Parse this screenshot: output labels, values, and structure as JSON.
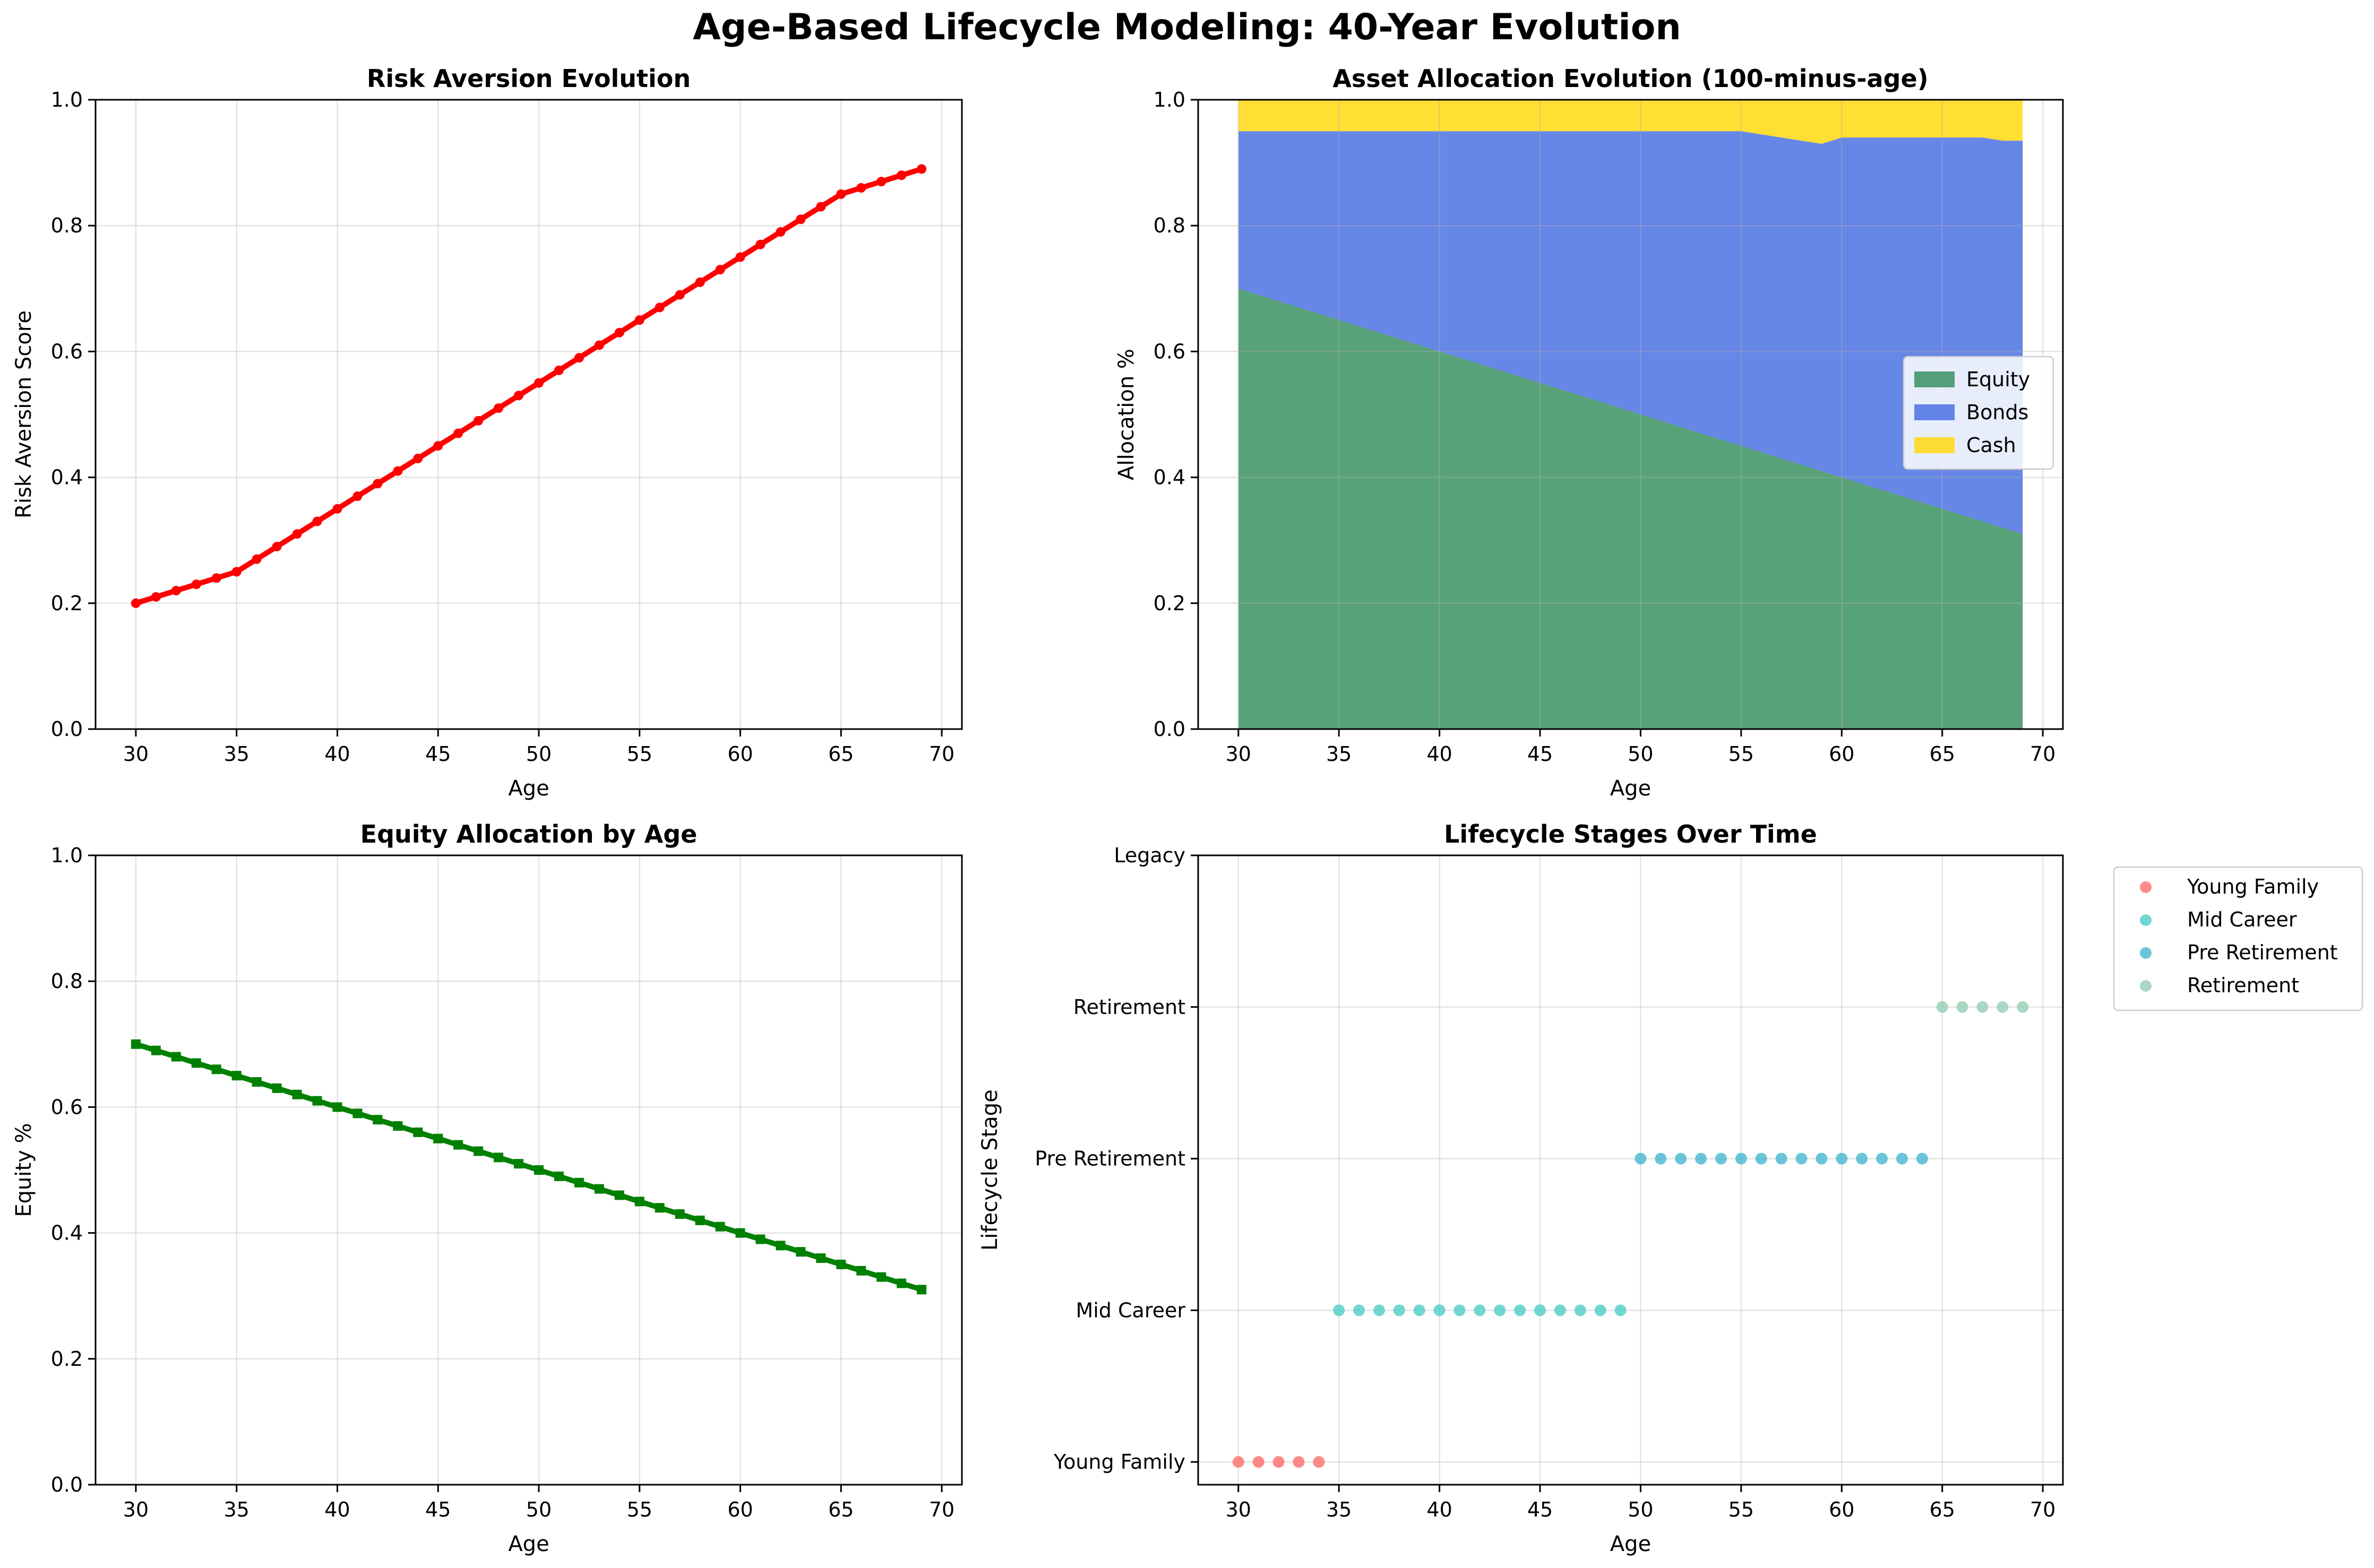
{
  "figure": {
    "title": "Age-Based Lifecycle Modeling: 40-Year Evolution"
  },
  "colors": {
    "risk": "#ff0000",
    "equity_line": "#008000",
    "equity_area": "#2e8b57",
    "bonds_area": "#4169e1",
    "cash_area": "#ffd700",
    "young_family": "#ff6b6b",
    "mid_career": "#4ecdc4",
    "pre_retirement": "#45b7d1",
    "retirement": "#96ceb4"
  },
  "chart_data": [
    {
      "id": "risk",
      "type": "line",
      "title": "Risk Aversion Evolution",
      "xlabel": "Age",
      "ylabel": "Risk Aversion Score",
      "xlim": [
        28,
        71
      ],
      "ylim": [
        0,
        1
      ],
      "xticks": [
        "30",
        "35",
        "40",
        "45",
        "50",
        "55",
        "60",
        "65",
        "70"
      ],
      "yticks": [
        "0.0",
        "0.2",
        "0.4",
        "0.6",
        "0.8",
        "1.0"
      ],
      "grid": true,
      "marker": "circle",
      "series": [
        {
          "x": [
            30,
            31,
            32,
            33,
            34,
            35,
            36,
            37,
            38,
            39,
            40,
            41,
            42,
            43,
            44,
            45,
            46,
            47,
            48,
            49,
            50,
            51,
            52,
            53,
            54,
            55,
            56,
            57,
            58,
            59,
            60,
            61,
            62,
            63,
            64,
            65,
            66,
            67,
            68,
            69
          ],
          "values": [
            0.2,
            0.21,
            0.22,
            0.23,
            0.24,
            0.25,
            0.27,
            0.29,
            0.31,
            0.33,
            0.35,
            0.37,
            0.39,
            0.41,
            0.43,
            0.45,
            0.47,
            0.49,
            0.51,
            0.53,
            0.55,
            0.57,
            0.59,
            0.61,
            0.63,
            0.65,
            0.67,
            0.69,
            0.71,
            0.73,
            0.75,
            0.77,
            0.79,
            0.81,
            0.83,
            0.85,
            0.86,
            0.87,
            0.88,
            0.89
          ]
        }
      ]
    },
    {
      "id": "alloc",
      "type": "area",
      "stacked": true,
      "title": "Asset Allocation Evolution (100-minus-age)",
      "xlabel": "Age",
      "ylabel": "Allocation %",
      "xlim": [
        28,
        71
      ],
      "ylim": [
        0,
        1
      ],
      "xticks": [
        "30",
        "35",
        "40",
        "45",
        "50",
        "55",
        "60",
        "65",
        "70"
      ],
      "yticks": [
        "0.0",
        "0.2",
        "0.4",
        "0.6",
        "0.8",
        "1.0"
      ],
      "grid": true,
      "legend": "center-right",
      "x": [
        30,
        31,
        32,
        33,
        34,
        35,
        36,
        37,
        38,
        39,
        40,
        41,
        42,
        43,
        44,
        45,
        46,
        47,
        48,
        49,
        50,
        51,
        52,
        53,
        54,
        55,
        56,
        57,
        58,
        59,
        60,
        61,
        62,
        63,
        64,
        65,
        66,
        67,
        68,
        69
      ],
      "series": [
        {
          "name": "Equity",
          "values": [
            0.7,
            0.69,
            0.68,
            0.67,
            0.66,
            0.65,
            0.64,
            0.63,
            0.62,
            0.61,
            0.6,
            0.59,
            0.58,
            0.57,
            0.56,
            0.55,
            0.54,
            0.53,
            0.52,
            0.51,
            0.5,
            0.49,
            0.48,
            0.47,
            0.46,
            0.45,
            0.44,
            0.43,
            0.42,
            0.41,
            0.4,
            0.39,
            0.38,
            0.37,
            0.36,
            0.35,
            0.34,
            0.33,
            0.32,
            0.31
          ]
        },
        {
          "name": "Bonds",
          "values": [
            0.25,
            0.26,
            0.27,
            0.28,
            0.29,
            0.3,
            0.31,
            0.32,
            0.33,
            0.34,
            0.35,
            0.36,
            0.37,
            0.38,
            0.39,
            0.4,
            0.41,
            0.42,
            0.43,
            0.44,
            0.45,
            0.46,
            0.47,
            0.48,
            0.49,
            0.5,
            0.505,
            0.51,
            0.515,
            0.52,
            0.54,
            0.55,
            0.56,
            0.57,
            0.58,
            0.59,
            0.6,
            0.61,
            0.615,
            0.625
          ]
        },
        {
          "name": "Cash",
          "values": [
            0.05,
            0.05,
            0.05,
            0.05,
            0.05,
            0.05,
            0.05,
            0.05,
            0.05,
            0.05,
            0.05,
            0.05,
            0.05,
            0.05,
            0.05,
            0.05,
            0.05,
            0.05,
            0.05,
            0.05,
            0.05,
            0.05,
            0.05,
            0.05,
            0.05,
            0.05,
            0.055,
            0.06,
            0.065,
            0.07,
            0.06,
            0.06,
            0.06,
            0.06,
            0.06,
            0.06,
            0.06,
            0.06,
            0.065,
            0.065
          ]
        }
      ]
    },
    {
      "id": "equity",
      "type": "line",
      "title": "Equity Allocation by Age",
      "xlabel": "Age",
      "ylabel": "Equity %",
      "xlim": [
        28,
        71
      ],
      "ylim": [
        0,
        1
      ],
      "xticks": [
        "30",
        "35",
        "40",
        "45",
        "50",
        "55",
        "60",
        "65",
        "70"
      ],
      "yticks": [
        "0.0",
        "0.2",
        "0.4",
        "0.6",
        "0.8",
        "1.0"
      ],
      "grid": true,
      "marker": "square",
      "series": [
        {
          "x": [
            30,
            31,
            32,
            33,
            34,
            35,
            36,
            37,
            38,
            39,
            40,
            41,
            42,
            43,
            44,
            45,
            46,
            47,
            48,
            49,
            50,
            51,
            52,
            53,
            54,
            55,
            56,
            57,
            58,
            59,
            60,
            61,
            62,
            63,
            64,
            65,
            66,
            67,
            68,
            69
          ],
          "values": [
            0.7,
            0.69,
            0.68,
            0.67,
            0.66,
            0.65,
            0.64,
            0.63,
            0.62,
            0.61,
            0.6,
            0.59,
            0.58,
            0.57,
            0.56,
            0.55,
            0.54,
            0.53,
            0.52,
            0.51,
            0.5,
            0.49,
            0.48,
            0.47,
            0.46,
            0.45,
            0.44,
            0.43,
            0.42,
            0.41,
            0.4,
            0.39,
            0.38,
            0.37,
            0.36,
            0.35,
            0.34,
            0.33,
            0.32,
            0.31
          ]
        }
      ]
    },
    {
      "id": "stages",
      "type": "scatter",
      "title": "Lifecycle Stages Over Time",
      "xlabel": "Age",
      "ylabel": "Lifecycle Stage",
      "xlim": [
        28,
        71
      ],
      "ylim": [
        -0.15,
        4
      ],
      "xticks": [
        "30",
        "35",
        "40",
        "45",
        "50",
        "55",
        "60",
        "65",
        "70"
      ],
      "yticks": [
        "Young Family",
        "Mid Career",
        "Pre Retirement",
        "Retirement",
        "Legacy"
      ],
      "grid": true,
      "legend": "outside-right",
      "series": [
        {
          "name": "Young Family",
          "level": 0,
          "x": [
            30,
            31,
            32,
            33,
            34
          ]
        },
        {
          "name": "Mid Career",
          "level": 1,
          "x": [
            35,
            36,
            37,
            38,
            39,
            40,
            41,
            42,
            43,
            44,
            45,
            46,
            47,
            48,
            49
          ]
        },
        {
          "name": "Pre Retirement",
          "level": 2,
          "x": [
            50,
            51,
            52,
            53,
            54,
            55,
            56,
            57,
            58,
            59,
            60,
            61,
            62,
            63,
            64
          ]
        },
        {
          "name": "Retirement",
          "level": 3,
          "x": [
            65,
            66,
            67,
            68,
            69
          ]
        }
      ]
    }
  ]
}
